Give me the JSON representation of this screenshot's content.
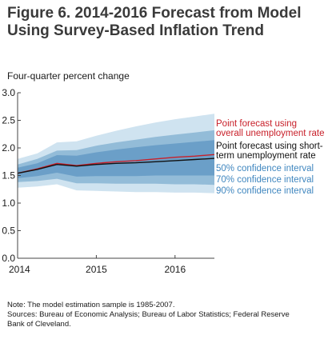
{
  "chart_data": {
    "type": "area",
    "title_line1": "Figure 6. 2014-2016 Forecast from Model",
    "title_line2": "Using Survey-Based Inflation Trend",
    "ylabel": "Four-quarter percent change",
    "ylim": [
      0,
      3
    ],
    "yticks": [
      "0.0",
      "0.5",
      "1.0",
      "1.5",
      "2.0",
      "2.5",
      "3.0"
    ],
    "ytick_values": [
      0,
      0.5,
      1,
      1.5,
      2,
      2.5,
      3
    ],
    "xlim": [
      2014.0,
      2016.5
    ],
    "xticks": [
      "2014",
      "2015",
      "2016"
    ],
    "xtick_values": [
      2014,
      2015,
      2016
    ],
    "x": [
      2014.0,
      2014.25,
      2014.5,
      2014.75,
      2015.0,
      2015.25,
      2015.5,
      2015.75,
      2016.0,
      2016.25,
      2016.5
    ],
    "series": [
      {
        "name": "Point forecast using overall unemployment rate",
        "label_lines": [
          "Point forecast using",
          "overall unemployment rate"
        ],
        "color": "#c8202a",
        "values": [
          1.54,
          1.62,
          1.72,
          1.68,
          1.72,
          1.75,
          1.77,
          1.8,
          1.83,
          1.85,
          1.88
        ]
      },
      {
        "name": "Point forecast using short-term unemployment rate",
        "label_lines": [
          "Point forecast using short-",
          "term unemployment rate"
        ],
        "color": "#111111",
        "values": [
          1.54,
          1.61,
          1.7,
          1.67,
          1.7,
          1.72,
          1.73,
          1.75,
          1.77,
          1.79,
          1.81
        ]
      }
    ],
    "bands": [
      {
        "name": "90% confidence interval",
        "color": "#cfe3f0",
        "upper": [
          1.8,
          1.9,
          2.1,
          2.12,
          2.22,
          2.31,
          2.39,
          2.46,
          2.52,
          2.57,
          2.62
        ],
        "lower": [
          1.28,
          1.3,
          1.34,
          1.23,
          1.22,
          1.21,
          1.2,
          1.2,
          1.19,
          1.19,
          1.18
        ]
      },
      {
        "name": "70% confidence interval",
        "color": "#93bcd8",
        "upper": [
          1.7,
          1.8,
          1.95,
          1.96,
          2.04,
          2.1,
          2.15,
          2.2,
          2.24,
          2.28,
          2.32
        ],
        "lower": [
          1.38,
          1.4,
          1.44,
          1.36,
          1.36,
          1.35,
          1.35,
          1.35,
          1.34,
          1.34,
          1.33
        ]
      },
      {
        "name": "50% confidence interval",
        "color": "#6b9fc8",
        "upper": [
          1.64,
          1.72,
          1.87,
          1.86,
          1.92,
          1.97,
          2.01,
          2.05,
          2.08,
          2.11,
          2.14
        ],
        "lower": [
          1.45,
          1.49,
          1.55,
          1.48,
          1.49,
          1.49,
          1.49,
          1.5,
          1.5,
          1.5,
          1.5
        ]
      }
    ],
    "legend": [
      {
        "text": "50% confidence interval",
        "color": "#3f86bf"
      },
      {
        "text": "70% confidence interval",
        "color": "#3f86bf"
      },
      {
        "text": "90% confidence interval",
        "color": "#3f86bf"
      }
    ],
    "legend_placement": "right",
    "grid": false
  },
  "notes": {
    "line1": "Note: The model estimation sample is 1985-2007.",
    "line2": "Sources: Bureau of Economic Analysis; Bureau of Labor Statistics; Federal Reserve",
    "line3": "Bank of Cleveland."
  }
}
